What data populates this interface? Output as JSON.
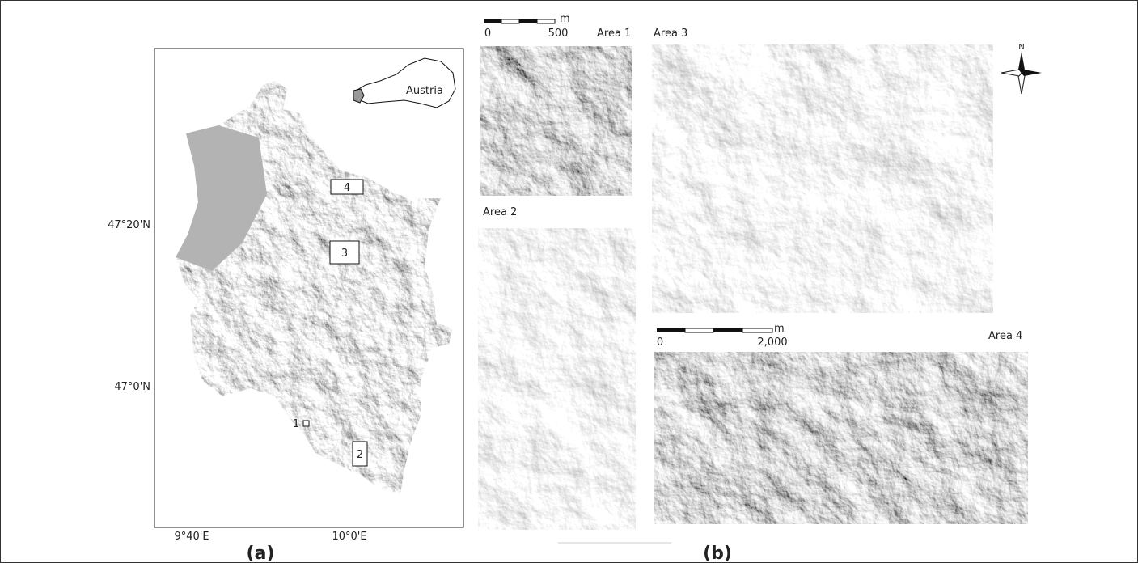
{
  "panel_a": {
    "label": "(a)",
    "inset_label": "Austria",
    "lat_labels": [
      "47°20'N",
      "47°0'N"
    ],
    "lon_labels": [
      "9°40'E",
      "10°0'E"
    ],
    "area_markers": [
      "4",
      "3",
      "1",
      "2"
    ]
  },
  "panel_b": {
    "label": "(b)",
    "north": "N",
    "scale_small": {
      "unit": "m",
      "ticks": [
        "0",
        "500"
      ]
    },
    "scale_large": {
      "unit": "m",
      "ticks": [
        "0",
        "2,000"
      ]
    },
    "areas": [
      "Area 1",
      "Area 2",
      "Area 3",
      "Area 4"
    ]
  }
}
